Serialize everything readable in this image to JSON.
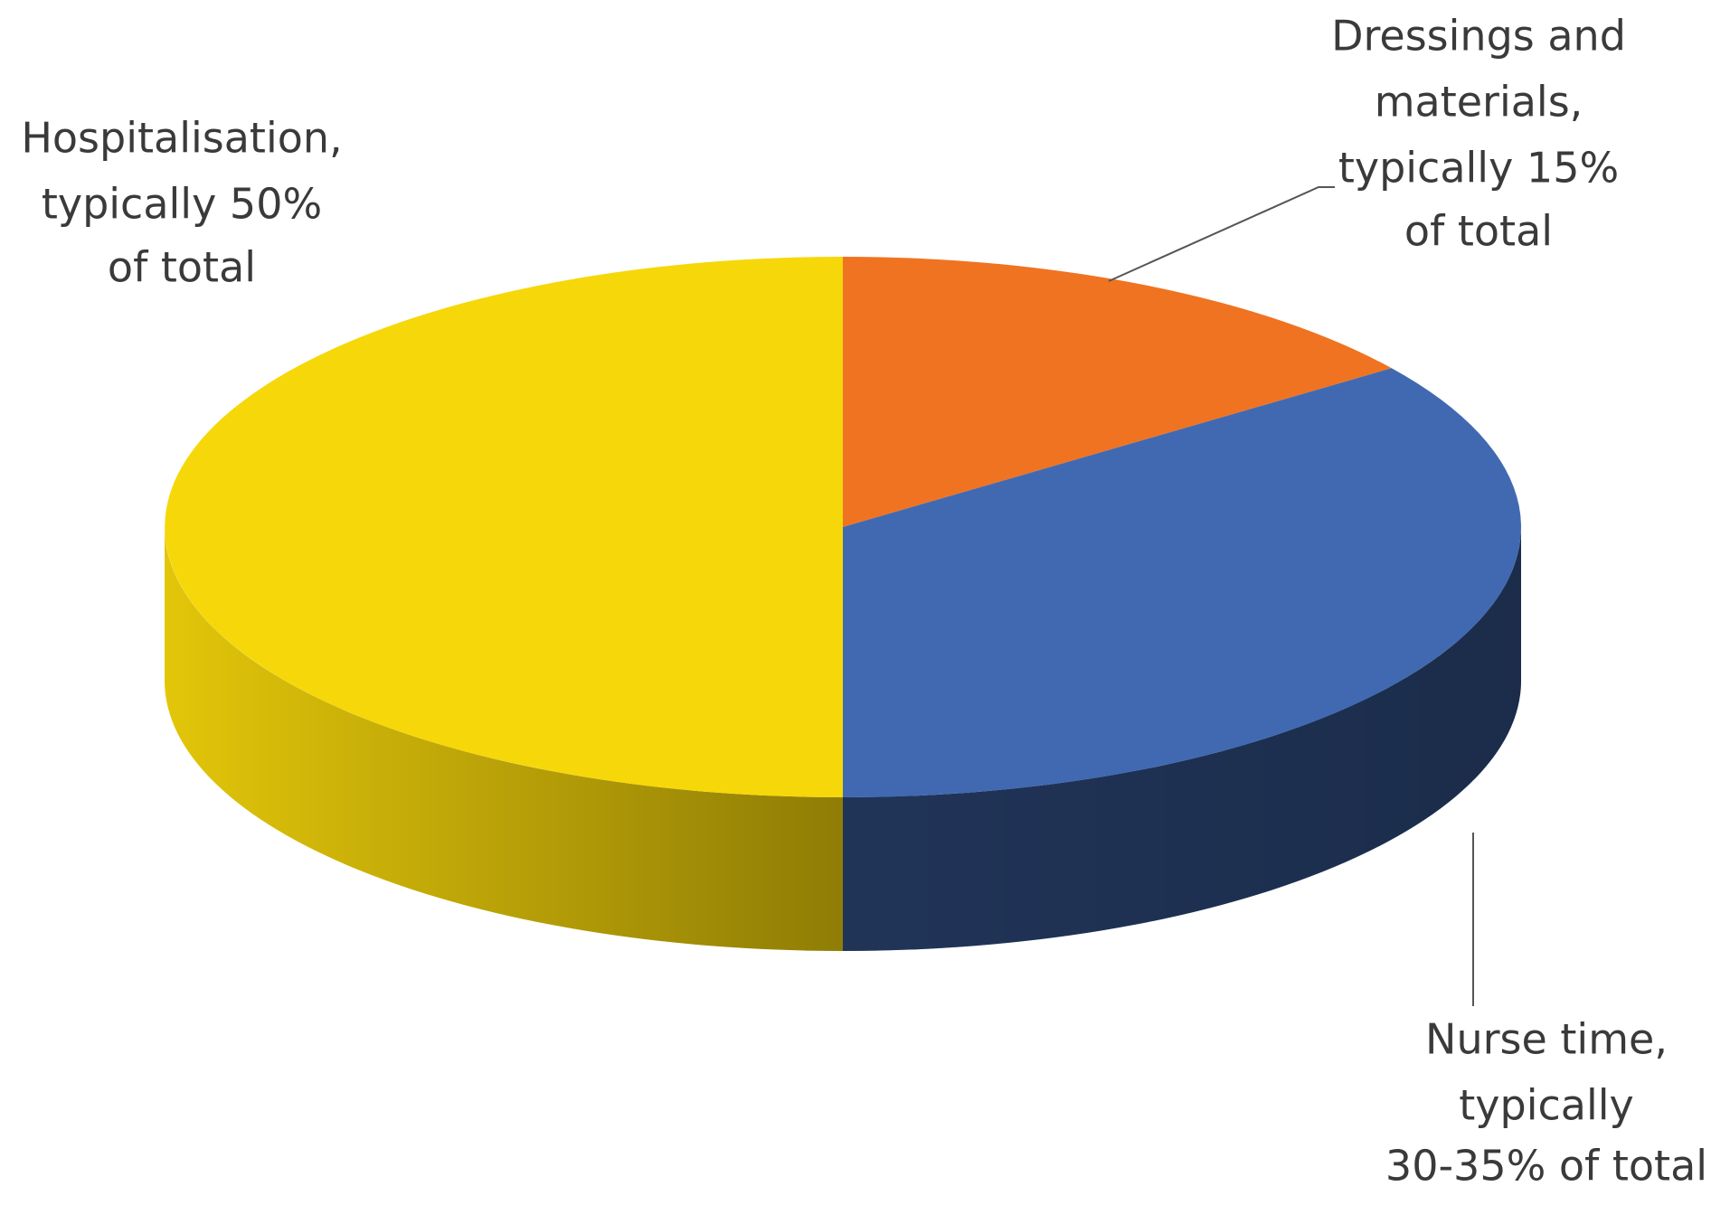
{
  "chart_data": {
    "type": "pie3d",
    "categories": [
      "Dressings and materials",
      "Nurse time",
      "Hospitalisation"
    ],
    "values": [
      15,
      35,
      50
    ],
    "value_labels": [
      [
        "Dressings and",
        "materials,",
        "typically 15%",
        "of total"
      ],
      [
        "Nurse time,",
        "typically",
        "30-35% of total"
      ],
      [
        "Hospitalisation,",
        "typically 50%",
        "of total"
      ]
    ],
    "colors": [
      "#f07322",
      "#4169b1",
      "#f6d70a"
    ]
  }
}
